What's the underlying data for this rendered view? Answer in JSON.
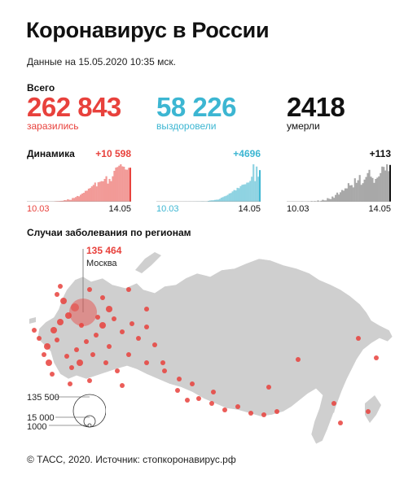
{
  "title": "Коронавирус в России",
  "date_line": "Данные на 15.05.2020 10:35 мск.",
  "total_label": "Всего",
  "stats": {
    "infected": {
      "value": "262 843",
      "label": "заразились",
      "color": "#e8413c"
    },
    "recovered": {
      "value": "58 226",
      "label": "выздоровели",
      "color": "#3cb6d2"
    },
    "died": {
      "value": "2418",
      "label": "умерли",
      "color": "#111111"
    }
  },
  "dynamics_label": "Динамика",
  "chart_data": [
    {
      "type": "bar",
      "series_key": "infected",
      "delta_label": "+10 598",
      "color": "#e8413c",
      "x_start": "10.03",
      "x_end": "14.05",
      "values": [
        3,
        1,
        6,
        1,
        4,
        11,
        18,
        15,
        25,
        34,
        34,
        45,
        62,
        53,
        33,
        71,
        55,
        151,
        182,
        196,
        228,
        270,
        302,
        501,
        440,
        771,
        601,
        582,
        1154,
        1175,
        1459,
        1786,
        1667,
        2186,
        2558,
        2774,
        3388,
        3448,
        4070,
        4268,
        4785,
        5236,
        5966,
        4774,
        6060,
        6198,
        6411,
        6361,
        7099,
        7933,
        5642,
        7099,
        6411,
        7933,
        9623,
        10633,
        10817,
        11231,
        11656,
        11012,
        10899,
        10028,
        9974,
        10559,
        10598
      ]
    },
    {
      "type": "bar",
      "series_key": "recovered",
      "delta_label": "+4696",
      "color": "#3cb6d2",
      "x_start": "10.03",
      "x_end": "14.05",
      "values": [
        0,
        0,
        0,
        0,
        0,
        0,
        0,
        2,
        0,
        1,
        2,
        0,
        0,
        0,
        3,
        4,
        1,
        13,
        16,
        0,
        21,
        9,
        11,
        22,
        23,
        45,
        38,
        51,
        69,
        66,
        56,
        67,
        131,
        183,
        205,
        211,
        268,
        300,
        310,
        418,
        592,
        688,
        805,
        887,
        1022,
        1221,
        1304,
        1526,
        1738,
        1676,
        2062,
        2010,
        2319,
        2511,
        2562,
        2598,
        2835,
        2854,
        3092,
        3713,
        5559,
        3057,
        5223,
        3711,
        4696
      ]
    },
    {
      "type": "bar",
      "series_key": "died",
      "delta_label": "+113",
      "color": "#111111",
      "x_start": "10.03",
      "x_end": "14.05",
      "values": [
        0,
        0,
        0,
        0,
        0,
        0,
        0,
        0,
        0,
        1,
        0,
        0,
        0,
        1,
        0,
        2,
        1,
        2,
        1,
        4,
        1,
        3,
        6,
        4,
        4,
        11,
        9,
        8,
        16,
        12,
        21,
        28,
        22,
        29,
        36,
        34,
        41,
        41,
        57,
        50,
        51,
        44,
        72,
        58,
        66,
        82,
        52,
        57,
        68,
        76,
        88,
        98,
        77,
        73,
        58,
        70,
        74,
        78,
        88,
        108,
        107,
        96,
        115,
        94,
        113
      ]
    }
  ],
  "map": {
    "title": "Случаи заболевания по регионам",
    "moscow_value": "135 464",
    "moscow_name": "Москва",
    "legend": [
      "135 500",
      "15 000",
      "1000"
    ],
    "land_color": "#cfcfcf",
    "bubble_color": "#e8413c"
  },
  "footer": "© ТАСС, 2020. Источник: стопкоронавирус.рф"
}
